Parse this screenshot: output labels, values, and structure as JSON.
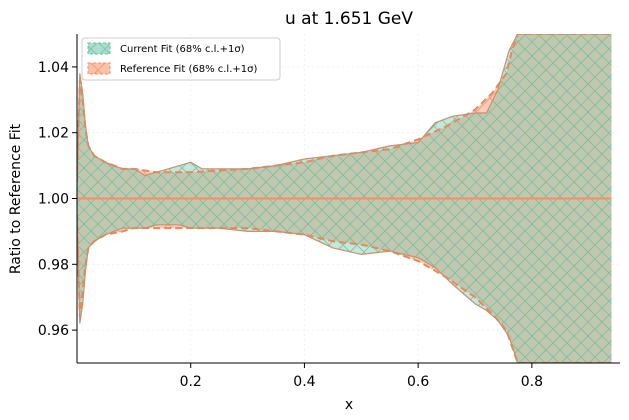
{
  "chart_data": {
    "type": "area",
    "title": "u at 1.651 GeV",
    "xlabel": "x",
    "ylabel": "Ratio to Reference Fit",
    "xlim": [
      0.0,
      0.955
    ],
    "ylim": [
      0.95,
      1.05
    ],
    "xticks": [
      0.2,
      0.4,
      0.6,
      0.8
    ],
    "xtick_labels": [
      "0.2",
      "0.4",
      "0.6",
      "0.8"
    ],
    "yticks": [
      0.96,
      0.98,
      1.0,
      1.02,
      1.04
    ],
    "ytick_labels": [
      "0.96",
      "0.98",
      "1.00",
      "1.02",
      "1.04"
    ],
    "grid": true,
    "legend_position": "top-left",
    "colors": {
      "current": "#66c2a5",
      "reference": "#fc8d62",
      "overlap_fill": "#d4b496"
    },
    "series": [
      {
        "name": "Current Fit (68% c.l.+1σ)",
        "x": [
          0.0,
          0.005,
          0.01,
          0.015,
          0.02,
          0.03,
          0.05,
          0.08,
          0.1,
          0.12,
          0.14,
          0.16,
          0.18,
          0.2,
          0.22,
          0.25,
          0.3,
          0.35,
          0.4,
          0.45,
          0.5,
          0.55,
          0.6,
          0.63,
          0.66,
          0.7,
          0.72,
          0.74,
          0.76,
          0.775,
          0.8,
          0.85,
          0.9,
          0.94
        ],
        "upper": [
          1.005,
          1.038,
          1.032,
          1.022,
          1.016,
          1.013,
          1.011,
          1.009,
          1.009,
          1.007,
          1.008,
          1.009,
          1.01,
          1.011,
          1.009,
          1.009,
          1.009,
          1.01,
          1.012,
          1.013,
          1.014,
          1.016,
          1.017,
          1.023,
          1.025,
          1.026,
          1.026,
          1.033,
          1.045,
          1.05,
          1.05,
          1.05,
          1.05,
          1.05
        ],
        "lower": [
          0.995,
          0.962,
          0.968,
          0.978,
          0.985,
          0.987,
          0.989,
          0.991,
          0.991,
          0.991,
          0.992,
          0.992,
          0.992,
          0.991,
          0.991,
          0.991,
          0.99,
          0.99,
          0.989,
          0.985,
          0.983,
          0.984,
          0.982,
          0.979,
          0.974,
          0.968,
          0.966,
          0.963,
          0.958,
          0.95,
          0.95,
          0.95,
          0.95,
          0.95
        ],
        "central": [
          1.0,
          1.0,
          1.0,
          1.0,
          1.0,
          1.0,
          1.0,
          1.0,
          1.0,
          1.0,
          1.0,
          1.0,
          1.0,
          1.0,
          1.0,
          1.0,
          1.0,
          1.0,
          1.0,
          1.0,
          1.0,
          1.0,
          1.0,
          1.0,
          1.0,
          1.0,
          1.0,
          1.0,
          1.0,
          1.0,
          1.0,
          1.0,
          1.0,
          1.0
        ]
      },
      {
        "name": "Reference Fit (68% c.l.+1σ)",
        "x": [
          0.0,
          0.005,
          0.01,
          0.015,
          0.02,
          0.03,
          0.05,
          0.08,
          0.1,
          0.14,
          0.2,
          0.3,
          0.4,
          0.45,
          0.5,
          0.55,
          0.6,
          0.65,
          0.7,
          0.73,
          0.755,
          0.765,
          0.775,
          0.8,
          0.85,
          0.9,
          0.94
        ],
        "upper": [
          1.005,
          1.036,
          1.03,
          1.021,
          1.016,
          1.013,
          1.011,
          1.009,
          1.009,
          1.008,
          1.008,
          1.009,
          1.011,
          1.013,
          1.014,
          1.015,
          1.018,
          1.022,
          1.027,
          1.032,
          1.038,
          1.045,
          1.05,
          1.05,
          1.05,
          1.05,
          1.05
        ],
        "lower": [
          0.995,
          0.964,
          0.972,
          0.98,
          0.985,
          0.987,
          0.989,
          0.99,
          0.991,
          0.991,
          0.991,
          0.991,
          0.989,
          0.987,
          0.986,
          0.984,
          0.981,
          0.976,
          0.97,
          0.965,
          0.96,
          0.955,
          0.95,
          0.95,
          0.95,
          0.95,
          0.95
        ],
        "central": [
          1.0,
          1.0,
          1.0,
          1.0,
          1.0,
          1.0,
          1.0,
          1.0,
          1.0,
          1.0,
          1.0,
          1.0,
          1.0,
          1.0,
          1.0,
          1.0,
          1.0,
          1.0,
          1.0,
          1.0,
          1.0,
          1.0,
          1.0,
          1.0,
          1.0,
          1.0,
          1.0
        ]
      }
    ]
  }
}
